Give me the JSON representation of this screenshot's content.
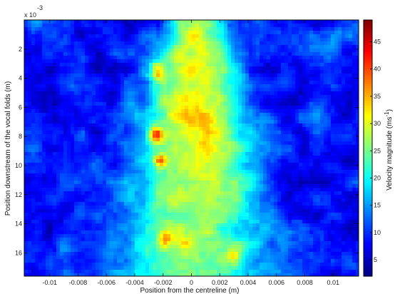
{
  "chart_data": {
    "type": "heatmap",
    "xlabel": "Position from the centreline (m)",
    "ylabel": "Position downstream of the vocal folds (m)",
    "colorbar_label": "Velocity magnitude (ms",
    "colorbar_label_exponent": "-1",
    "colorbar_label_close": ")",
    "y_multiplier": "x 10",
    "y_multiplier_exponent": "-3",
    "colormap": "jet",
    "xlim": [
      -0.0118,
      0.0118
    ],
    "ylim": [
      0.0176,
      0
    ],
    "clim": [
      2,
      49
    ],
    "x_ticks": [
      -0.01,
      -0.008,
      -0.006,
      -0.004,
      -0.002,
      0,
      0.002,
      0.004,
      0.006,
      0.008,
      0.01
    ],
    "x_tick_labels": [
      "-0.01",
      "-0.008",
      "-0.006",
      "-0.004",
      "-0.002",
      "0",
      "0.002",
      "0.004",
      "0.006",
      "0.008",
      "0.01"
    ],
    "y_ticks": [
      0.002,
      0.004,
      0.006,
      0.008,
      0.01,
      0.012,
      0.014,
      0.016
    ],
    "y_tick_labels": [
      "2",
      "4",
      "6",
      "8",
      "10",
      "12",
      "14",
      "16"
    ],
    "colorbar_ticks": [
      5,
      10,
      15,
      20,
      25,
      30,
      35,
      40,
      45
    ],
    "colorbar_tick_labels": [
      "5",
      "10",
      "15",
      "20",
      "25",
      "30",
      "35",
      "40",
      "45"
    ],
    "jet_core": {
      "centre_x": 0.0003,
      "description_points": [
        {
          "y": 0.0002,
          "half_width": 0.0018,
          "peak": 30
        },
        {
          "y": 0.002,
          "half_width": 0.0022,
          "peak": 31
        },
        {
          "y": 0.004,
          "half_width": 0.0033,
          "peak": 31
        },
        {
          "y": 0.008,
          "half_width": 0.0036,
          "peak": 32
        },
        {
          "y": 0.012,
          "half_width": 0.0042,
          "peak": 29
        },
        {
          "y": 0.016,
          "half_width": 0.005,
          "peak": 25
        },
        {
          "y": 0.0176,
          "half_width": 0.0055,
          "peak": 24
        }
      ]
    },
    "hotspots": [
      {
        "x": -0.0024,
        "y": 0.0035,
        "value": 46
      },
      {
        "x": -0.0025,
        "y": 0.0079,
        "value": 47
      },
      {
        "x": -0.0022,
        "y": 0.0096,
        "value": 45
      },
      {
        "x": -0.0018,
        "y": 0.0151,
        "value": 42
      },
      {
        "x": -0.0006,
        "y": 0.0153,
        "value": 38
      },
      {
        "x": 0.003,
        "y": 0.0163,
        "value": 38
      }
    ],
    "background_level": 8
  }
}
